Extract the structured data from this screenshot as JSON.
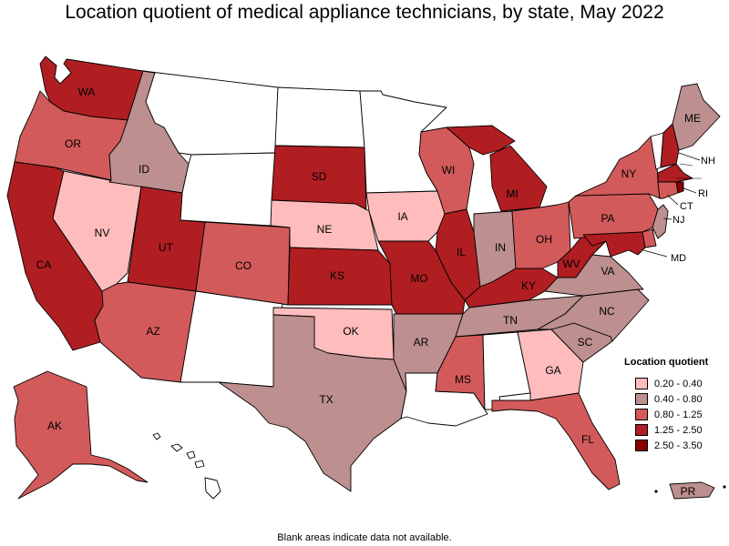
{
  "title": "Location quotient of medical appliance technicians, by state, May 2022",
  "footnote": "Blank areas indicate data not available.",
  "legend": {
    "title": "Location quotient",
    "items": [
      {
        "label": "0.20 - 0.40",
        "color": "#ffbcbc"
      },
      {
        "label": "0.40 - 0.80",
        "color": "#bd8f8f"
      },
      {
        "label": "0.80 - 1.25",
        "color": "#d35a5a"
      },
      {
        "label": "1.25 - 2.50",
        "color": "#b01e22"
      },
      {
        "label": "2.50 - 3.50",
        "color": "#8a0000"
      }
    ]
  },
  "states": {
    "WA": {
      "label": "WA",
      "cls": 3
    },
    "OR": {
      "label": "OR",
      "cls": 2
    },
    "CA": {
      "label": "CA",
      "cls": 3
    },
    "NV": {
      "label": "NV",
      "cls": 0
    },
    "ID": {
      "label": "ID",
      "cls": 1
    },
    "MT": {
      "label": "",
      "cls": -1
    },
    "WY": {
      "label": "",
      "cls": -1
    },
    "UT": {
      "label": "UT",
      "cls": 3
    },
    "AZ": {
      "label": "AZ",
      "cls": 2
    },
    "CO": {
      "label": "CO",
      "cls": 2
    },
    "NM": {
      "label": "",
      "cls": -1
    },
    "ND": {
      "label": "",
      "cls": -1
    },
    "SD": {
      "label": "SD",
      "cls": 3
    },
    "NE": {
      "label": "NE",
      "cls": 0
    },
    "KS": {
      "label": "KS",
      "cls": 3
    },
    "OK": {
      "label": "OK",
      "cls": 0
    },
    "TX": {
      "label": "TX",
      "cls": 1
    },
    "MN": {
      "label": "",
      "cls": -1
    },
    "IA": {
      "label": "IA",
      "cls": 0
    },
    "MO": {
      "label": "MO",
      "cls": 3
    },
    "AR": {
      "label": "AR",
      "cls": 1
    },
    "LA": {
      "label": "",
      "cls": -1
    },
    "WI": {
      "label": "WI",
      "cls": 2
    },
    "IL": {
      "label": "IL",
      "cls": 3
    },
    "MI": {
      "label": "MI",
      "cls": 3
    },
    "IN": {
      "label": "IN",
      "cls": 1
    },
    "OH": {
      "label": "OH",
      "cls": 2
    },
    "KY": {
      "label": "KY",
      "cls": 3
    },
    "TN": {
      "label": "TN",
      "cls": 1
    },
    "MS": {
      "label": "MS",
      "cls": 2
    },
    "AL": {
      "label": "",
      "cls": -1
    },
    "GA": {
      "label": "GA",
      "cls": 0
    },
    "FL": {
      "label": "FL",
      "cls": 2
    },
    "SC": {
      "label": "SC",
      "cls": 1
    },
    "NC": {
      "label": "NC",
      "cls": 1
    },
    "VA": {
      "label": "VA",
      "cls": 1
    },
    "WV": {
      "label": "WV",
      "cls": 3
    },
    "PA": {
      "label": "PA",
      "cls": 2
    },
    "NY": {
      "label": "NY",
      "cls": 2
    },
    "VT": {
      "label": "",
      "cls": -1
    },
    "NH": {
      "label": "NH",
      "cls": 3
    },
    "ME": {
      "label": "ME",
      "cls": 1
    },
    "MA": {
      "label": "",
      "cls": 3
    },
    "RI": {
      "label": "RI",
      "cls": 4
    },
    "CT": {
      "label": "CT",
      "cls": 2
    },
    "NJ": {
      "label": "NJ",
      "cls": 1
    },
    "DE": {
      "label": "",
      "cls": 2
    },
    "MD": {
      "label": "MD",
      "cls": 3
    },
    "AK": {
      "label": "AK",
      "cls": 2
    },
    "HI": {
      "label": "",
      "cls": -1
    },
    "PR": {
      "label": "PR",
      "cls": 1
    }
  }
}
